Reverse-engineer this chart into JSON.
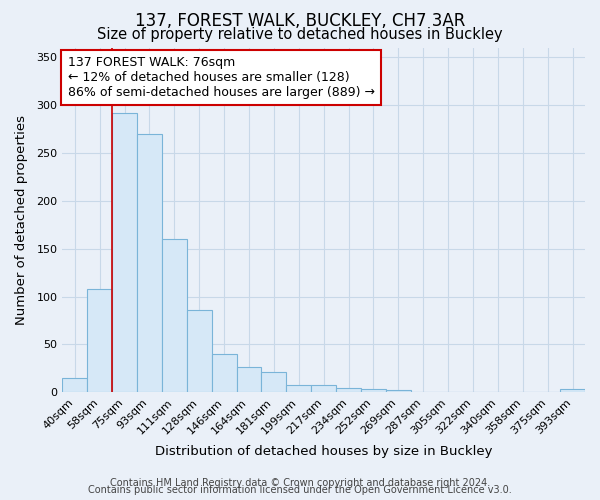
{
  "title1": "137, FOREST WALK, BUCKLEY, CH7 3AR",
  "title2": "Size of property relative to detached houses in Buckley",
  "xlabel": "Distribution of detached houses by size in Buckley",
  "ylabel": "Number of detached properties",
  "categories": [
    "40sqm",
    "58sqm",
    "75sqm",
    "93sqm",
    "111sqm",
    "128sqm",
    "146sqm",
    "164sqm",
    "181sqm",
    "199sqm",
    "217sqm",
    "234sqm",
    "252sqm",
    "269sqm",
    "287sqm",
    "305sqm",
    "322sqm",
    "340sqm",
    "358sqm",
    "375sqm",
    "393sqm"
  ],
  "values": [
    15,
    108,
    292,
    270,
    160,
    86,
    40,
    26,
    21,
    8,
    8,
    4,
    3,
    2,
    0,
    0,
    0,
    0,
    0,
    0,
    3
  ],
  "bar_color": "#d6e8f7",
  "bar_edge_color": "#7ab4d8",
  "highlight_line_color": "#cc0000",
  "highlight_bar_index": 2,
  "annotation_line1": "137 FOREST WALK: 76sqm",
  "annotation_line2": "← 12% of detached houses are smaller (128)",
  "annotation_line3": "86% of semi-detached houses are larger (889) →",
  "annotation_box_color": "#ffffff",
  "annotation_box_edge": "#cc0000",
  "ylim": [
    0,
    360
  ],
  "yticks": [
    0,
    50,
    100,
    150,
    200,
    250,
    300,
    350
  ],
  "grid_color": "#c8d8e8",
  "bg_color": "#eaf0f8",
  "footer1": "Contains HM Land Registry data © Crown copyright and database right 2024.",
  "footer2": "Contains public sector information licensed under the Open Government Licence v3.0.",
  "title1_fontsize": 12,
  "title2_fontsize": 10.5,
  "xlabel_fontsize": 9.5,
  "ylabel_fontsize": 9.5,
  "tick_fontsize": 8,
  "annotation_fontsize": 9,
  "footer_fontsize": 7
}
